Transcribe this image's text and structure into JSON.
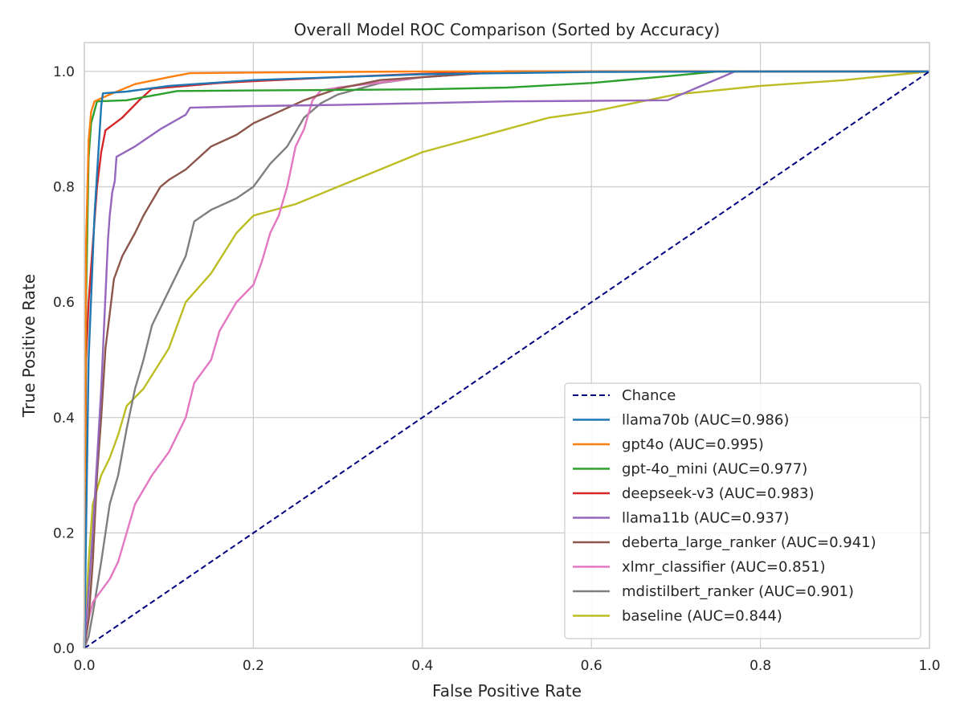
{
  "chart_data": {
    "type": "line",
    "title": "Overall Model ROC Comparison (Sorted by Accuracy)",
    "xlabel": "False Positive Rate",
    "ylabel": "True Positive Rate",
    "xlim": [
      0,
      1
    ],
    "ylim": [
      0,
      1.05
    ],
    "xticks": [
      0.0,
      0.2,
      0.4,
      0.6,
      0.8,
      1.0
    ],
    "yticks": [
      0.0,
      0.2,
      0.4,
      0.6,
      0.8,
      1.0
    ],
    "xtick_labels": [
      "0.0",
      "0.2",
      "0.4",
      "0.6",
      "0.8",
      "1.0"
    ],
    "ytick_labels": [
      "0.0",
      "0.2",
      "0.4",
      "0.6",
      "0.8",
      "1.0"
    ],
    "grid": true,
    "legend_position": "lower-right",
    "series": [
      {
        "name": "Chance",
        "color": "#000080",
        "dashed": true,
        "x": [
          0,
          1
        ],
        "y": [
          0,
          1
        ]
      },
      {
        "name": "llama70b (AUC=0.986)",
        "color": "#1f77b4",
        "x": [
          0,
          0.005,
          0.012,
          0.02,
          0.022,
          0.05,
          0.1,
          0.2,
          0.3,
          0.4,
          0.6,
          0.8,
          1.0
        ],
        "y": [
          0,
          0.5,
          0.75,
          0.94,
          0.962,
          0.965,
          0.975,
          0.985,
          0.99,
          0.995,
          0.999,
          1.0,
          1.0
        ]
      },
      {
        "name": "gpt4o (AUC=0.995)",
        "color": "#ff7f0e",
        "x": [
          0,
          0.002,
          0.005,
          0.008,
          0.012,
          0.03,
          0.06,
          0.1,
          0.125,
          0.2,
          0.4,
          1.0
        ],
        "y": [
          0,
          0.7,
          0.88,
          0.93,
          0.948,
          0.96,
          0.978,
          0.99,
          0.997,
          0.998,
          1.0,
          1.0
        ]
      },
      {
        "name": "gpt-4o_mini (AUC=0.977)",
        "color": "#2ca02c",
        "x": [
          0,
          0.002,
          0.005,
          0.008,
          0.015,
          0.05,
          0.08,
          0.11,
          0.2,
          0.3,
          0.4,
          0.5,
          0.6,
          0.7,
          0.75,
          1.0
        ],
        "y": [
          0,
          0.6,
          0.85,
          0.91,
          0.948,
          0.95,
          0.958,
          0.966,
          0.967,
          0.968,
          0.969,
          0.972,
          0.98,
          0.993,
          1.0,
          1.0
        ]
      },
      {
        "name": "deepseek-v3 (AUC=0.983)",
        "color": "#d62728",
        "x": [
          0,
          0.002,
          0.005,
          0.01,
          0.015,
          0.02,
          0.025,
          0.045,
          0.065,
          0.08,
          0.12,
          0.16,
          0.2,
          0.3,
          0.4,
          0.5,
          1.0
        ],
        "y": [
          0,
          0.5,
          0.6,
          0.7,
          0.8,
          0.86,
          0.898,
          0.92,
          0.95,
          0.97,
          0.975,
          0.98,
          0.983,
          0.99,
          0.996,
          1.0,
          1.0
        ]
      },
      {
        "name": "llama11b (AUC=0.937)",
        "color": "#9467bd",
        "x": [
          0,
          0.01,
          0.02,
          0.028,
          0.03,
          0.033,
          0.036,
          0.038,
          0.06,
          0.09,
          0.12,
          0.125,
          0.2,
          0.3,
          0.4,
          0.5,
          0.6,
          0.69,
          0.73,
          0.77,
          1.0
        ],
        "y": [
          0,
          0.2,
          0.45,
          0.71,
          0.75,
          0.79,
          0.81,
          0.852,
          0.87,
          0.9,
          0.925,
          0.937,
          0.94,
          0.942,
          0.945,
          0.948,
          0.949,
          0.95,
          0.975,
          1.0,
          1.0
        ]
      },
      {
        "name": "deberta_large_ranker (AUC=0.941)",
        "color": "#8c564b",
        "x": [
          0,
          0.005,
          0.01,
          0.015,
          0.02,
          0.025,
          0.03,
          0.035,
          0.045,
          0.06,
          0.07,
          0.09,
          0.1,
          0.12,
          0.15,
          0.18,
          0.2,
          0.23,
          0.26,
          0.3,
          0.35,
          0.4,
          0.5,
          1.0
        ],
        "y": [
          0,
          0.05,
          0.15,
          0.3,
          0.4,
          0.52,
          0.58,
          0.64,
          0.68,
          0.72,
          0.75,
          0.8,
          0.812,
          0.83,
          0.87,
          0.89,
          0.91,
          0.93,
          0.95,
          0.97,
          0.985,
          0.99,
          1.0,
          1.0
        ]
      },
      {
        "name": "xlmr_classifier (AUC=0.851)",
        "color": "#e377c2",
        "x": [
          0,
          0.005,
          0.01,
          0.02,
          0.03,
          0.04,
          0.05,
          0.06,
          0.08,
          0.1,
          0.12,
          0.13,
          0.15,
          0.16,
          0.18,
          0.2,
          0.21,
          0.22,
          0.23,
          0.24,
          0.25,
          0.26,
          0.27,
          0.28,
          0.3,
          0.4,
          0.5,
          1.0
        ],
        "y": [
          0,
          0.05,
          0.08,
          0.1,
          0.12,
          0.15,
          0.2,
          0.25,
          0.3,
          0.34,
          0.4,
          0.46,
          0.5,
          0.55,
          0.6,
          0.63,
          0.67,
          0.72,
          0.75,
          0.8,
          0.87,
          0.9,
          0.95,
          0.967,
          0.972,
          0.99,
          1.0,
          1.0
        ]
      },
      {
        "name": "mdistilbert_ranker (AUC=0.901)",
        "color": "#7f7f7f",
        "x": [
          0,
          0.005,
          0.01,
          0.02,
          0.03,
          0.04,
          0.05,
          0.06,
          0.07,
          0.08,
          0.1,
          0.12,
          0.13,
          0.15,
          0.18,
          0.2,
          0.22,
          0.24,
          0.26,
          0.28,
          0.3,
          0.35,
          0.4,
          0.5,
          1.0
        ],
        "y": [
          0,
          0.02,
          0.06,
          0.15,
          0.25,
          0.3,
          0.38,
          0.45,
          0.5,
          0.56,
          0.62,
          0.68,
          0.74,
          0.76,
          0.78,
          0.8,
          0.84,
          0.87,
          0.92,
          0.945,
          0.96,
          0.98,
          0.99,
          1.0,
          1.0
        ]
      },
      {
        "name": "baseline (AUC=0.844)",
        "color": "#bcbd22",
        "x": [
          0,
          0.005,
          0.01,
          0.02,
          0.03,
          0.04,
          0.05,
          0.07,
          0.1,
          0.12,
          0.15,
          0.18,
          0.2,
          0.25,
          0.3,
          0.35,
          0.4,
          0.45,
          0.5,
          0.55,
          0.6,
          0.7,
          0.8,
          0.9,
          1.0
        ],
        "y": [
          0,
          0.15,
          0.25,
          0.3,
          0.33,
          0.37,
          0.42,
          0.45,
          0.52,
          0.6,
          0.65,
          0.72,
          0.75,
          0.77,
          0.8,
          0.83,
          0.86,
          0.88,
          0.9,
          0.92,
          0.93,
          0.96,
          0.975,
          0.985,
          1.0
        ]
      }
    ]
  }
}
